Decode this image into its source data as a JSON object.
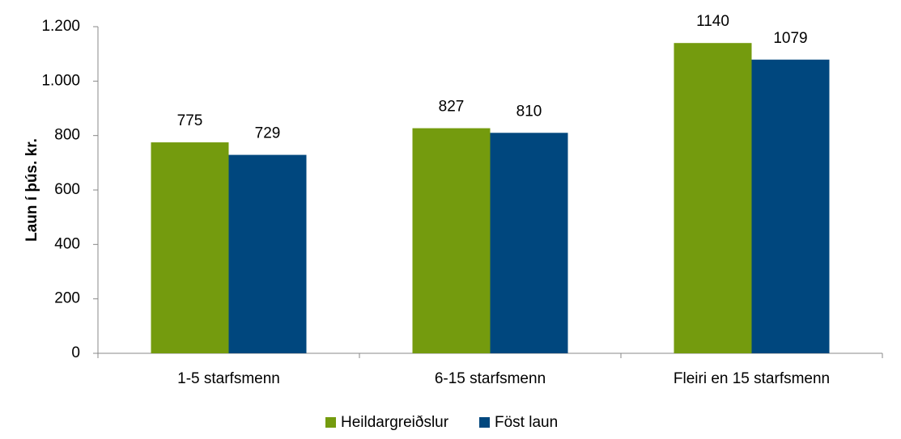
{
  "chart_data": {
    "type": "bar",
    "y_label": "Laun í þús. kr.",
    "categories": [
      "1-5 starfsmenn",
      "6-15 starfsmenn",
      "Fleiri en 15 starfsmenn"
    ],
    "series": [
      {
        "name": "Heildargreiðslur",
        "color": "#749b0e",
        "values": [
          775,
          827,
          1140
        ]
      },
      {
        "name": "Föst laun",
        "color": "#00477e",
        "values": [
          729,
          810,
          1079
        ]
      }
    ],
    "ylim": [
      0,
      1200
    ],
    "yticks": [
      0,
      200,
      400,
      600,
      800,
      {
        "value": 1000,
        "label": "1.000"
      },
      {
        "value": 1200,
        "label": "1.200"
      }
    ],
    "grid": false,
    "legend": "bottom"
  }
}
